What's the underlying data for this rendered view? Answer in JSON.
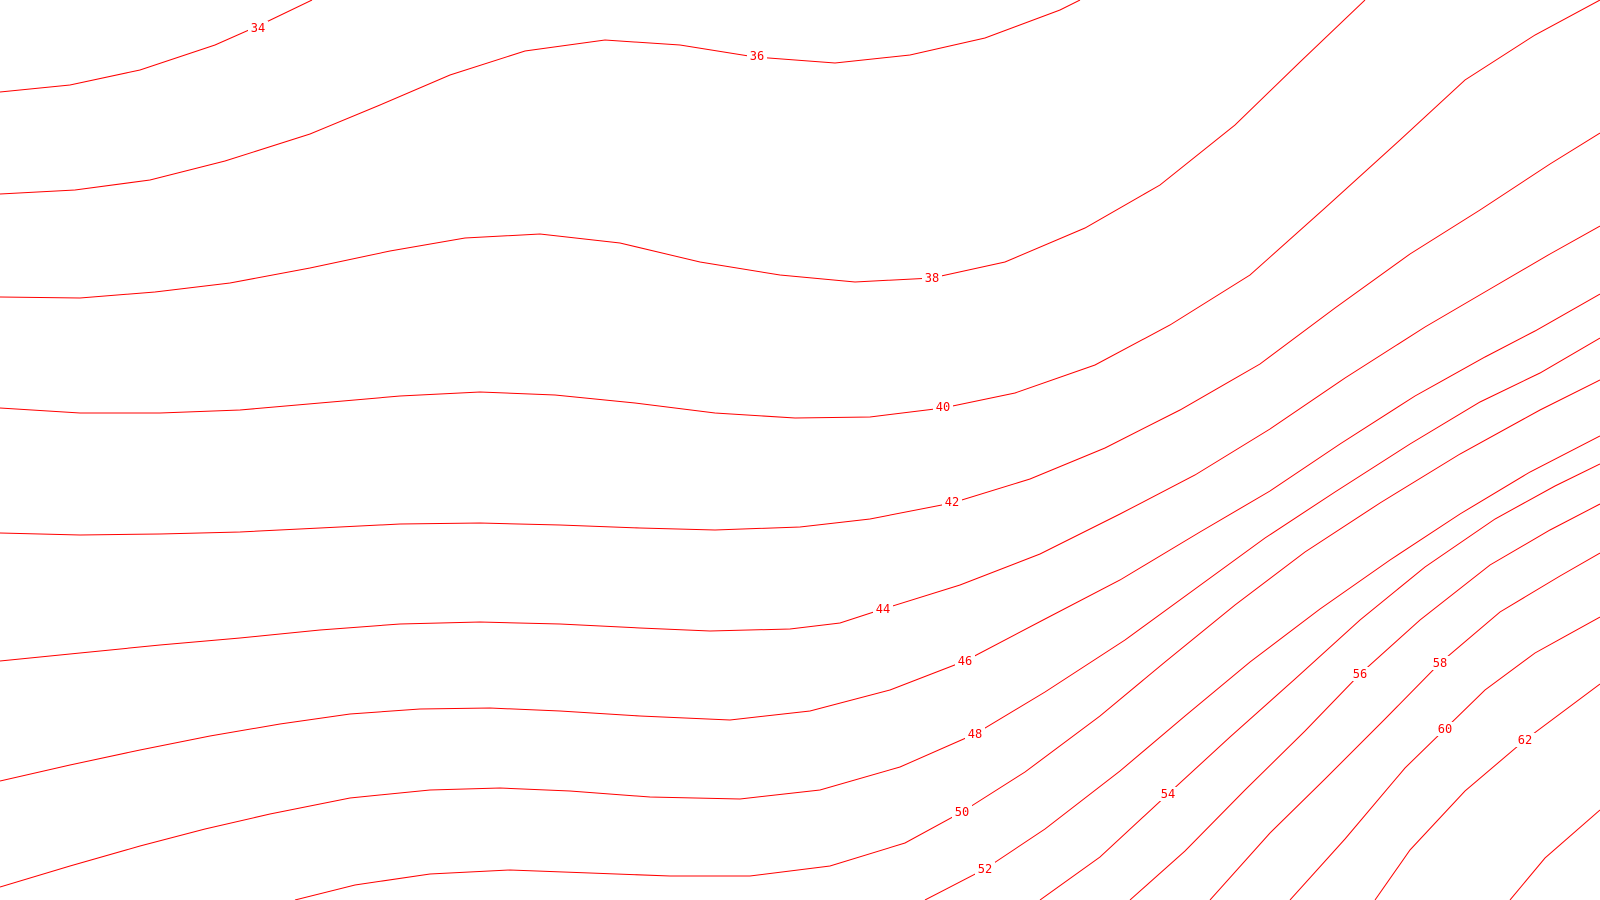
{
  "map": {
    "style": {
      "background_color": "#ffffff",
      "contour_color": "#ff0000"
    },
    "contour_interval": 2,
    "contours": [
      {
        "value": 34,
        "label": "34"
      },
      {
        "value": 36,
        "label": "36"
      },
      {
        "value": 38,
        "label": "38"
      },
      {
        "value": 40,
        "label": "40"
      },
      {
        "value": 42,
        "label": "42"
      },
      {
        "value": 44,
        "label": "44"
      },
      {
        "value": 46,
        "label": "46"
      },
      {
        "value": 48,
        "label": "48"
      },
      {
        "value": 50,
        "label": "50"
      },
      {
        "value": 52,
        "label": "52"
      },
      {
        "value": 54,
        "label": "54"
      },
      {
        "value": 56,
        "label": "56"
      },
      {
        "value": 58,
        "label": "58"
      },
      {
        "value": 60,
        "label": "60"
      },
      {
        "value": 62,
        "label": "62"
      }
    ]
  }
}
